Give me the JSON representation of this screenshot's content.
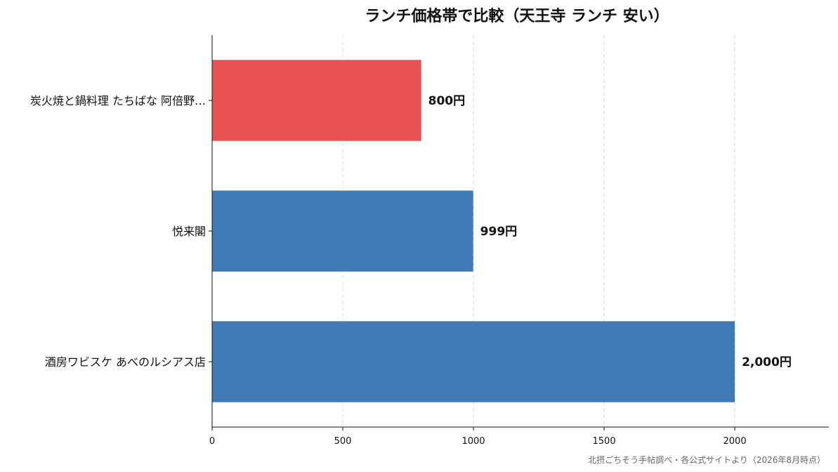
{
  "chart_data": {
    "type": "bar",
    "orientation": "horizontal",
    "title": "ランチ価格帯で比較（天王寺 ランチ 安い）",
    "categories": [
      "炭火焼と鍋料理 たちばな 阿倍野…",
      "悦来閣",
      "酒房ワビスケ あべのルシアス店"
    ],
    "values": [
      800,
      999,
      2000
    ],
    "value_labels": [
      "800円",
      "999円",
      "2,000円"
    ],
    "bar_colors": [
      "#e85151",
      "#3f7ab6",
      "#3f7ab6"
    ],
    "xlim": [
      0,
      2360
    ],
    "xticks": [
      0,
      500,
      1000,
      1500,
      2000
    ],
    "xtick_labels": [
      "0",
      "500",
      "1000",
      "1500",
      "2000"
    ],
    "xlabel": "",
    "ylabel": "",
    "grid": "vertical dashed",
    "legend": "none"
  },
  "source_note": "北摂ごちそう手帖調べ・各公式サイトより（2026年8月時点）"
}
